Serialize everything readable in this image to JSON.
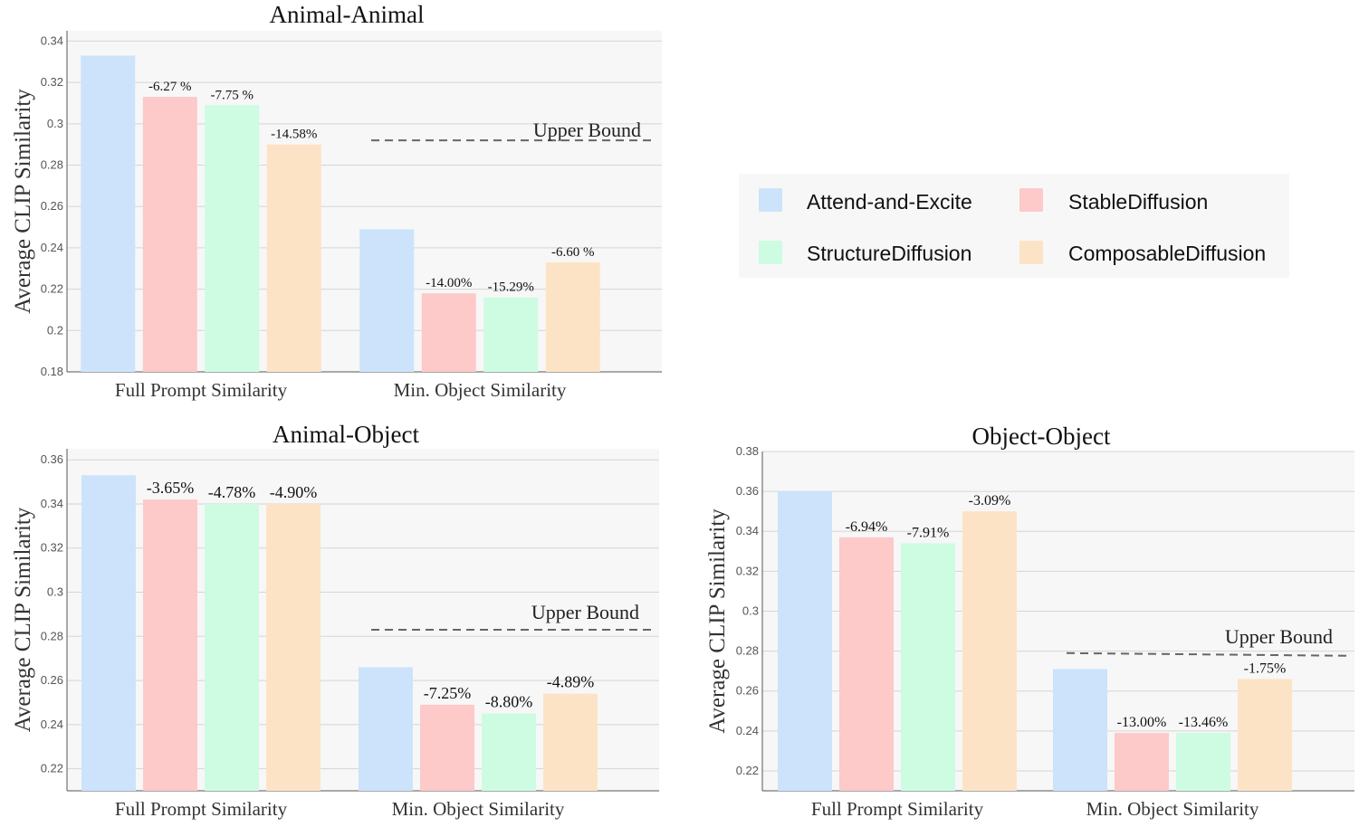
{
  "colors": {
    "Attend-and-Excite": "#cce3fb",
    "StableDiffusion": "#fdc9c9",
    "StructureDiffusion": "#cdfce2",
    "ComposableDiffusion": "#fde3c6",
    "plot_bg": "#f7f7f7",
    "grid": "#d6d6d6",
    "upper_bound_line": "#666666"
  },
  "legend": {
    "placement": "top-right",
    "items": [
      "Attend-and-Excite",
      "StableDiffusion",
      "StructureDiffusion",
      "ComposableDiffusion"
    ]
  },
  "chart_data": [
    {
      "type": "bar",
      "title": "Animal-Animal",
      "ylabel": "Average CLIP Similarity",
      "xlabel": "",
      "categories": [
        "Full Prompt Similarity",
        "Min. Object Similarity"
      ],
      "ylim": [
        0.18,
        0.345
      ],
      "yticks": [
        0.18,
        0.2,
        0.22,
        0.24,
        0.26,
        0.28,
        0.3,
        0.32,
        0.34
      ],
      "ytick_labels": [
        "0.18",
        "0.2",
        "0.22",
        "0.24",
        "0.26",
        "0.28",
        "0.3",
        "0.32",
        "0.34"
      ],
      "grid": true,
      "series": [
        {
          "name": "Attend-and-Excite",
          "values": [
            0.333,
            0.249
          ],
          "labels": [
            "",
            ""
          ]
        },
        {
          "name": "StableDiffusion",
          "values": [
            0.313,
            0.218
          ],
          "labels": [
            "-6.27 %",
            "-14.00%"
          ]
        },
        {
          "name": "StructureDiffusion",
          "values": [
            0.309,
            0.216
          ],
          "labels": [
            "-7.75 %",
            "-15.29%"
          ]
        },
        {
          "name": "ComposableDiffusion",
          "values": [
            0.29,
            0.233
          ],
          "labels": [
            "-14.58%",
            "-6.60 %"
          ]
        }
      ],
      "upper_bound": {
        "label": "Upper Bound",
        "value": 0.292
      }
    },
    {
      "type": "bar",
      "title": "Animal-Object",
      "ylabel": "Average CLIP Similarity",
      "xlabel": "",
      "categories": [
        "Full Prompt Similarity",
        "Min. Object Similarity"
      ],
      "ylim": [
        0.21,
        0.365
      ],
      "yticks": [
        0.22,
        0.24,
        0.26,
        0.28,
        0.3,
        0.32,
        0.34,
        0.36
      ],
      "ytick_labels": [
        "0.22",
        "0.24",
        "0.26",
        "0.28",
        "0.3",
        "0.32",
        "0.34",
        "0.36"
      ],
      "grid": true,
      "series": [
        {
          "name": "Attend-and-Excite",
          "values": [
            0.353,
            0.266
          ],
          "labels": [
            "",
            ""
          ]
        },
        {
          "name": "StableDiffusion",
          "values": [
            0.342,
            0.249
          ],
          "labels": [
            "-3.65%",
            "-7.25%"
          ]
        },
        {
          "name": "StructureDiffusion",
          "values": [
            0.34,
            0.245
          ],
          "labels": [
            "-4.78%",
            "-8.80%"
          ]
        },
        {
          "name": "ComposableDiffusion",
          "values": [
            0.34,
            0.254
          ],
          "labels": [
            "-4.90%",
            "-4.89%"
          ]
        }
      ],
      "upper_bound": {
        "label": "Upper Bound",
        "value": 0.283
      }
    },
    {
      "type": "bar",
      "title": "Object-Object",
      "ylabel": "Average CLIP Similarity",
      "xlabel": "",
      "categories": [
        "Full Prompt Similarity",
        "Min. Object Similarity"
      ],
      "ylim": [
        0.21,
        0.38
      ],
      "yticks": [
        0.22,
        0.24,
        0.26,
        0.28,
        0.3,
        0.32,
        0.34,
        0.36,
        0.38
      ],
      "ytick_labels": [
        "0.22",
        "0.24",
        "0.26",
        "0.28",
        "0.3",
        "0.32",
        "0.34",
        "0.36",
        "0.38"
      ],
      "grid": true,
      "series": [
        {
          "name": "Attend-and-Excite",
          "values": [
            0.36,
            0.271
          ],
          "labels": [
            "",
            ""
          ]
        },
        {
          "name": "StableDiffusion",
          "values": [
            0.337,
            0.239
          ],
          "labels": [
            "-6.94%",
            "-13.00%"
          ]
        },
        {
          "name": "StructureDiffusion",
          "values": [
            0.334,
            0.239
          ],
          "labels": [
            "-7.91%",
            "-13.46%"
          ]
        },
        {
          "name": "ComposableDiffusion",
          "values": [
            0.35,
            0.266
          ],
          "labels": [
            "-3.09%",
            "-1.75%"
          ]
        }
      ],
      "upper_bound": {
        "label": "Upper Bound",
        "value": 0.279
      }
    }
  ]
}
